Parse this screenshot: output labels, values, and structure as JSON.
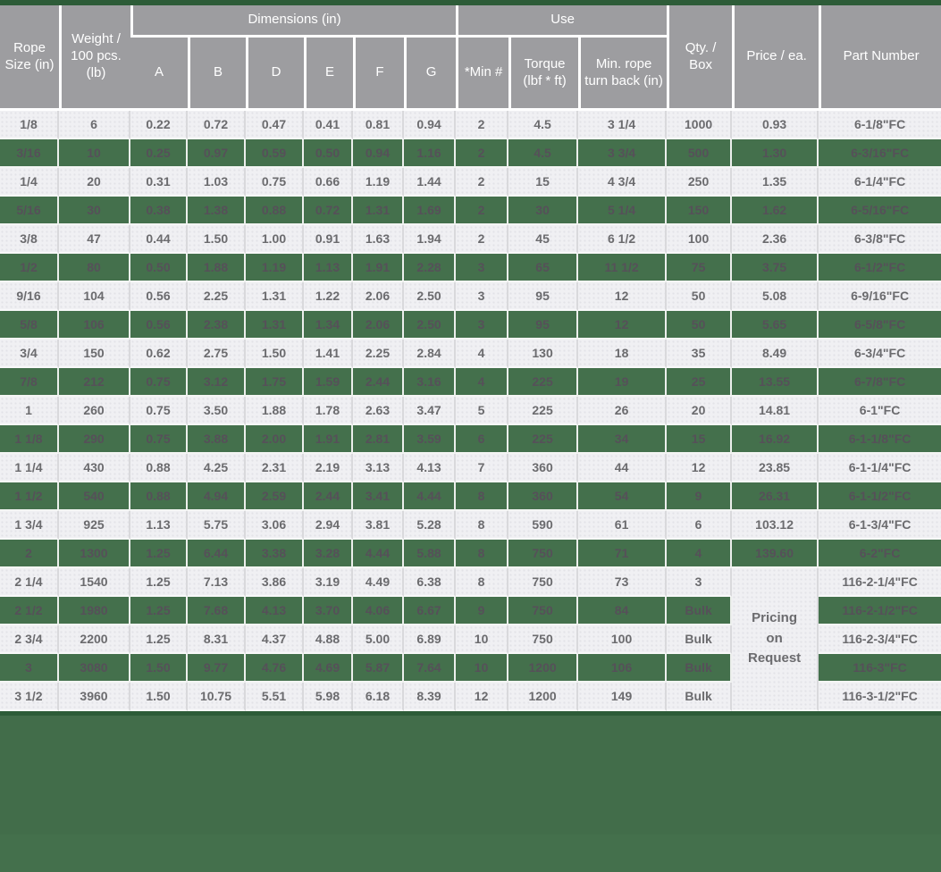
{
  "colors": {
    "top_strip_green": "#2d5c38",
    "green_row_bg": "#44704c",
    "header_gray_bg": "#9d9da0",
    "light_row_bg": "#f0f0f3",
    "price_red": "#ee3124",
    "light_row_text": "#6b6b6e",
    "green_row_text": "#565059",
    "header_text": "#ffffff",
    "bottom_band_bg": "#426d4a"
  },
  "chart_data": {
    "type": "table",
    "header": {
      "rope_size": "Rope Size (in)",
      "weight": "Weight / 100 pcs. (lb)",
      "dimensions_group": "Dimensions (in)",
      "dimension_subcols": [
        "A",
        "B",
        "D",
        "E",
        "F",
        "G"
      ],
      "use_group": "Use",
      "use_subcols": [
        "*Min #",
        "Torque (lbf * ft)",
        "Min. rope turn back (in)"
      ],
      "qty_box": "Qty. / Box",
      "price": "Price / ea.",
      "part_number": "Part Number"
    },
    "columns": [
      "rope_size_in",
      "weight_per_100_pcs_lb",
      "dim_A",
      "dim_B",
      "dim_D",
      "dim_E",
      "dim_F",
      "dim_G",
      "min_num",
      "torque_lbf_ft",
      "min_rope_turn_back_in",
      "qty_per_box",
      "price_each",
      "part_number"
    ],
    "pricing_on_request_label": "Pricing on Request",
    "rows": [
      [
        "1/8",
        "6",
        "0.22",
        "0.72",
        "0.47",
        "0.41",
        "0.81",
        "0.94",
        "2",
        "4.5",
        "3 1/4",
        "1000",
        "0.93",
        "6-1/8\"FC"
      ],
      [
        "3/16",
        "10",
        "0.25",
        "0.97",
        "0.59",
        "0.50",
        "0.94",
        "1.16",
        "2",
        "4.5",
        "3 3/4",
        "500",
        "1.30",
        "6-3/16\"FC"
      ],
      [
        "1/4",
        "20",
        "0.31",
        "1.03",
        "0.75",
        "0.66",
        "1.19",
        "1.44",
        "2",
        "15",
        "4 3/4",
        "250",
        "1.35",
        "6-1/4\"FC"
      ],
      [
        "5/16",
        "30",
        "0.38",
        "1.38",
        "0.88",
        "0.72",
        "1.31",
        "1.69",
        "2",
        "30",
        "5 1/4",
        "150",
        "1.62",
        "6-5/16\"FC"
      ],
      [
        "3/8",
        "47",
        "0.44",
        "1.50",
        "1.00",
        "0.91",
        "1.63",
        "1.94",
        "2",
        "45",
        "6 1/2",
        "100",
        "2.36",
        "6-3/8\"FC"
      ],
      [
        "1/2",
        "80",
        "0.50",
        "1.88",
        "1.19",
        "1.13",
        "1.91",
        "2.28",
        "3",
        "65",
        "11 1/2",
        "75",
        "3.75",
        "6-1/2\"FC"
      ],
      [
        "9/16",
        "104",
        "0.56",
        "2.25",
        "1.31",
        "1.22",
        "2.06",
        "2.50",
        "3",
        "95",
        "12",
        "50",
        "5.08",
        "6-9/16\"FC"
      ],
      [
        "5/8",
        "106",
        "0.56",
        "2.38",
        "1.31",
        "1.34",
        "2.06",
        "2.50",
        "3",
        "95",
        "12",
        "50",
        "5.65",
        "6-5/8\"FC"
      ],
      [
        "3/4",
        "150",
        "0.62",
        "2.75",
        "1.50",
        "1.41",
        "2.25",
        "2.84",
        "4",
        "130",
        "18",
        "35",
        "8.49",
        "6-3/4\"FC"
      ],
      [
        "7/8",
        "212",
        "0.75",
        "3.12",
        "1.75",
        "1.59",
        "2.44",
        "3.16",
        "4",
        "225",
        "19",
        "25",
        "13.55",
        "6-7/8\"FC"
      ],
      [
        "1",
        "260",
        "0.75",
        "3.50",
        "1.88",
        "1.78",
        "2.63",
        "3.47",
        "5",
        "225",
        "26",
        "20",
        "14.81",
        "6-1\"FC"
      ],
      [
        "1 1/8",
        "290",
        "0.75",
        "3.88",
        "2.00",
        "1.91",
        "2.81",
        "3.59",
        "6",
        "225",
        "34",
        "15",
        "16.92",
        "6-1-1/8\"FC"
      ],
      [
        "1 1/4",
        "430",
        "0.88",
        "4.25",
        "2.31",
        "2.19",
        "3.13",
        "4.13",
        "7",
        "360",
        "44",
        "12",
        "23.85",
        "6-1-1/4\"FC"
      ],
      [
        "1 1/2",
        "540",
        "0.88",
        "4.94",
        "2.59",
        "2.44",
        "3.41",
        "4.44",
        "8",
        "360",
        "54",
        "9",
        "26.31",
        "6-1-1/2\"FC"
      ],
      [
        "1 3/4",
        "925",
        "1.13",
        "5.75",
        "3.06",
        "2.94",
        "3.81",
        "5.28",
        "8",
        "590",
        "61",
        "6",
        "103.12",
        "6-1-3/4\"FC"
      ],
      [
        "2",
        "1300",
        "1.25",
        "6.44",
        "3.38",
        "3.28",
        "4.44",
        "5.88",
        "8",
        "750",
        "71",
        "4",
        "139.60",
        "6-2\"FC"
      ],
      [
        "2 1/4",
        "1540",
        "1.25",
        "7.13",
        "3.86",
        "3.19",
        "4.49",
        "6.38",
        "8",
        "750",
        "73",
        "3",
        "",
        "116-2-1/4\"FC"
      ],
      [
        "2 1/2",
        "1980",
        "1.25",
        "7.68",
        "4.13",
        "3.70",
        "4.06",
        "6.67",
        "9",
        "750",
        "84",
        "Bulk",
        "",
        "116-2-1/2\"FC"
      ],
      [
        "2 3/4",
        "2200",
        "1.25",
        "8.31",
        "4.37",
        "4.88",
        "5.00",
        "6.89",
        "10",
        "750",
        "100",
        "Bulk",
        "",
        "116-2-3/4\"FC"
      ],
      [
        "3",
        "3080",
        "1.50",
        "9.77",
        "4.76",
        "4.69",
        "5.87",
        "7.64",
        "10",
        "1200",
        "106",
        "Bulk",
        "",
        "116-3\"FC"
      ],
      [
        "3 1/2",
        "3960",
        "1.50",
        "10.75",
        "5.51",
        "5.98",
        "6.18",
        "8.39",
        "12",
        "1200",
        "149",
        "Bulk",
        "",
        "116-3-1/2\"FC"
      ]
    ]
  }
}
